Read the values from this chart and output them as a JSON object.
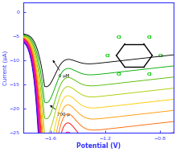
{
  "title": "",
  "xlabel": "Potential (V)",
  "ylabel": "Current (μA)",
  "xlim": [
    -1.8,
    -0.7
  ],
  "ylim": [
    -25,
    2
  ],
  "xticks": [
    -1.6,
    -1.2,
    -0.8
  ],
  "yticks": [
    0,
    -5,
    -10,
    -15,
    -20,
    -25
  ],
  "background_color": "#ffffff",
  "num_curves": 14,
  "label_0uM": "0 μM",
  "label_700u": "700 μ",
  "spine_color": "#3333ff",
  "tick_color": "#3333ff",
  "xlabel_color": "#3333ff",
  "ylabel_color": "#3333ff",
  "colors": [
    "#0000ff",
    "#5500bb",
    "#8800aa",
    "#bb00bb",
    "#ee00ee",
    "#ff0088",
    "#ff0000",
    "#ff6600",
    "#ff9900",
    "#ffcc00",
    "#aacc00",
    "#55bb00",
    "#00aa00",
    "#000000"
  ]
}
